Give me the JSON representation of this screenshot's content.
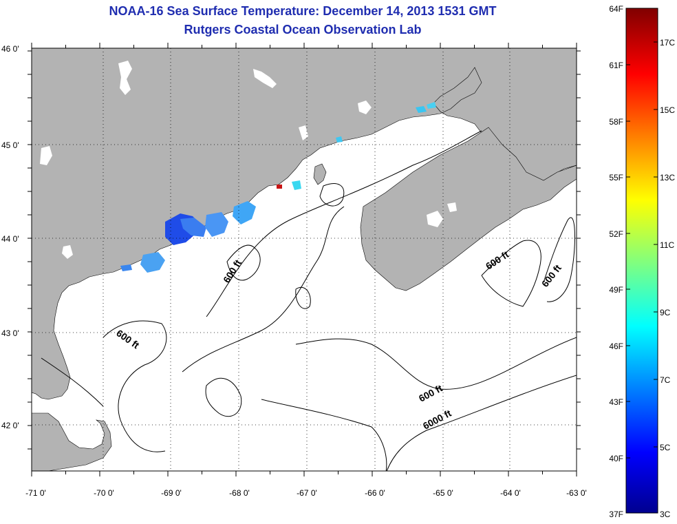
{
  "header": {
    "title": "NOAA-16 Sea Surface Temperature:  December 14, 2013 1531 GMT",
    "subtitle": "Rutgers Coastal Ocean Observation Lab"
  },
  "map": {
    "lon_labels": [
      "-71 0'",
      "-70 0'",
      "-69 0'",
      "-68 0'",
      "-67 0'",
      "-66 0'",
      "-65 0'",
      "-64 0'",
      "-63 0'"
    ],
    "lat_labels": [
      "46 0'",
      "45 0'",
      "44 0'",
      "43 0'",
      "42 0'"
    ],
    "contour_labels": [
      "600 ft",
      "600 ft",
      "600 ft",
      "600 ft",
      "600 ft",
      "6000 ft"
    ],
    "colors": {
      "land": "#b3b3b3",
      "ocean": "#ffffff",
      "contour": "#000000",
      "grid": "#000000"
    }
  },
  "colorbar": {
    "f_labels": [
      "64F",
      "61F",
      "58F",
      "55F",
      "52F",
      "49F",
      "46F",
      "43F",
      "40F",
      "37F"
    ],
    "c_labels": [
      "17C",
      "15C",
      "13C",
      "11C",
      "9C",
      "7C",
      "5C",
      "3C"
    ],
    "colormap": "jet"
  }
}
